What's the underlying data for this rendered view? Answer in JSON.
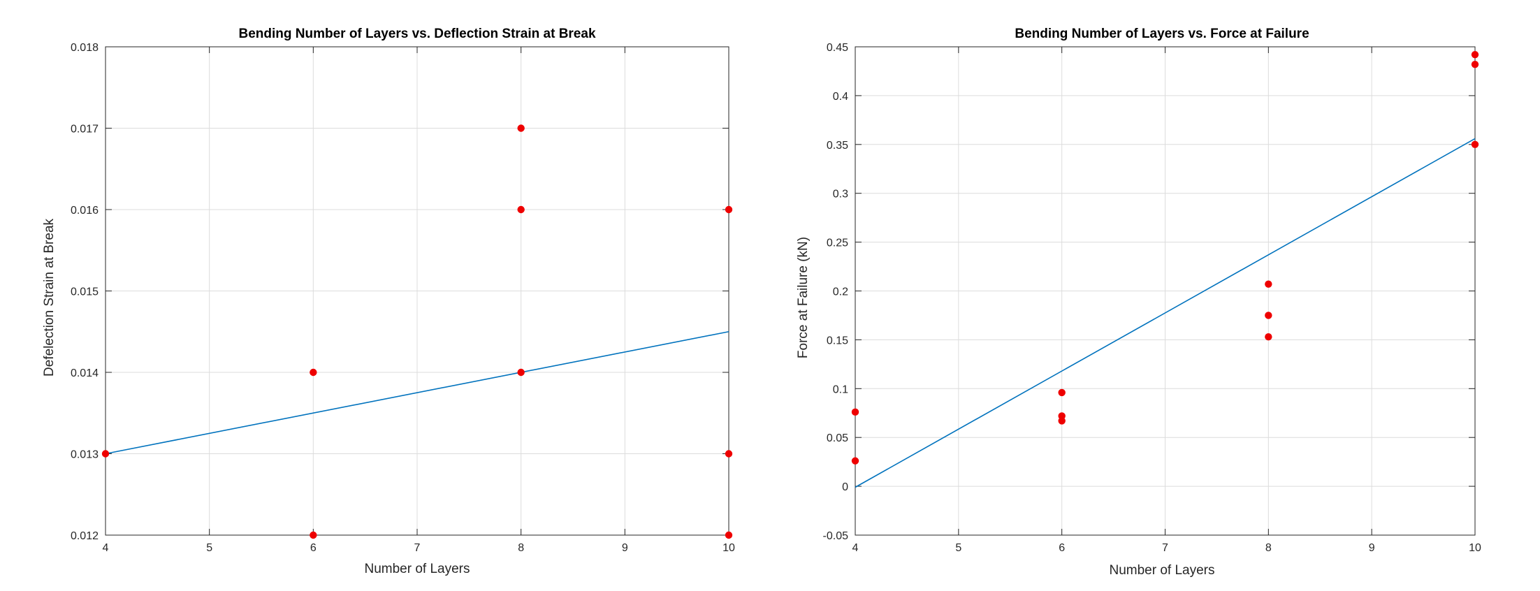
{
  "colors": {
    "fit": "#0072BD",
    "points": "#ee0000",
    "grid": "#dcdcdc",
    "axis": "#262626"
  },
  "chart_data": [
    {
      "type": "scatter",
      "title": "Bending Number of Layers vs. Deflection Strain at Break",
      "xlabel": "Number of Layers",
      "ylabel": "Defelection Strain at Break",
      "xlim": [
        4,
        10
      ],
      "ylim": [
        0.012,
        0.018
      ],
      "xticks": [
        4,
        5,
        6,
        7,
        8,
        9,
        10
      ],
      "yticks": [
        0.012,
        0.013,
        0.014,
        0.015,
        0.016,
        0.017,
        0.018
      ],
      "xtick_labels": [
        "4",
        "5",
        "6",
        "7",
        "8",
        "9",
        "10"
      ],
      "ytick_labels": [
        "0.012",
        "0.013",
        "0.014",
        "0.015",
        "0.016",
        "0.017",
        "0.018"
      ],
      "grid": true,
      "series": [
        {
          "type": "scatter",
          "color": "#ee0000",
          "x": [
            4,
            6,
            6,
            8,
            8,
            8,
            10,
            10,
            10
          ],
          "y": [
            0.013,
            0.014,
            0.012,
            0.017,
            0.016,
            0.014,
            0.016,
            0.013,
            0.012
          ]
        },
        {
          "type": "line",
          "color": "#0072BD",
          "x": [
            4,
            10
          ],
          "y": [
            0.013,
            0.0145
          ]
        }
      ]
    },
    {
      "type": "scatter",
      "title": "Bending Number of Layers vs. Force at Failure",
      "xlabel": "Number of Layers",
      "ylabel": "Force at Failure (kN)",
      "xlim": [
        4,
        10
      ],
      "ylim": [
        -0.05,
        0.45
      ],
      "xticks": [
        4,
        5,
        6,
        7,
        8,
        9,
        10
      ],
      "yticks": [
        -0.05,
        0,
        0.05,
        0.1,
        0.15,
        0.2,
        0.25,
        0.3,
        0.35,
        0.4,
        0.45
      ],
      "xtick_labels": [
        "4",
        "5",
        "6",
        "7",
        "8",
        "9",
        "10"
      ],
      "ytick_labels": [
        "-0.05",
        "0",
        "0.05",
        "0.1",
        "0.15",
        "0.2",
        "0.25",
        "0.3",
        "0.35",
        "0.4",
        "0.45"
      ],
      "grid": true,
      "series": [
        {
          "type": "scatter",
          "color": "#ee0000",
          "x": [
            4,
            4,
            6,
            6,
            6,
            8,
            8,
            8,
            10,
            10,
            10
          ],
          "y": [
            0.076,
            0.026,
            0.096,
            0.072,
            0.067,
            0.207,
            0.175,
            0.153,
            0.442,
            0.432,
            0.35
          ]
        },
        {
          "type": "line",
          "color": "#0072BD",
          "x": [
            4,
            10
          ],
          "y": [
            -0.001,
            0.356
          ]
        }
      ]
    }
  ]
}
